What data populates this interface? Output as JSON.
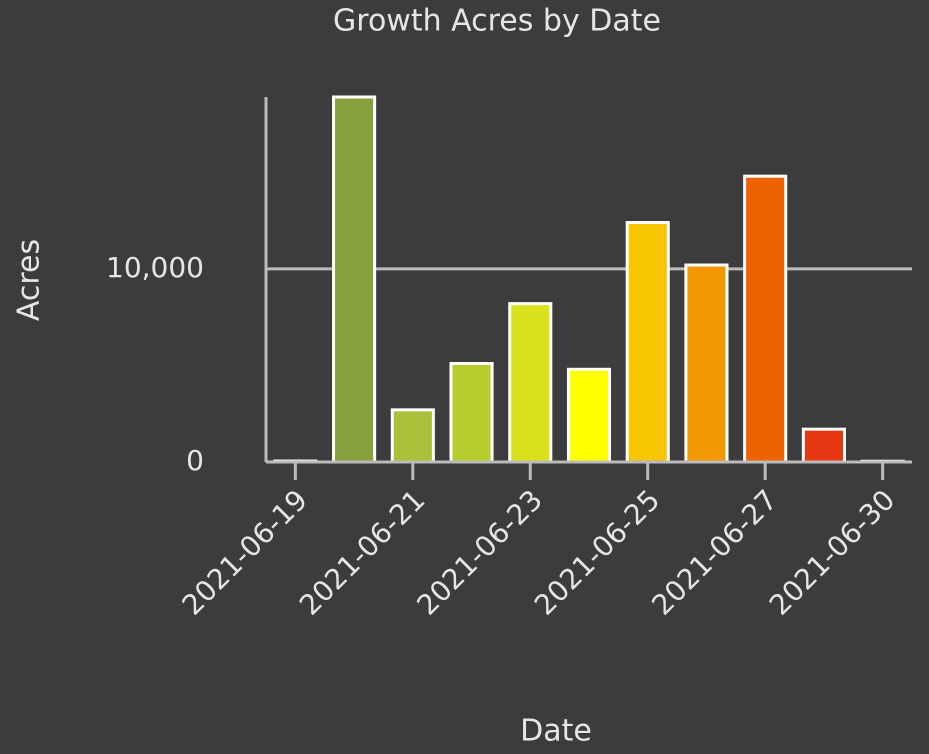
{
  "chart_data": {
    "type": "bar",
    "title": "Growth Acres by Date",
    "x_label": "Date",
    "y_label": "Acres",
    "categories": [
      "2021-06-19",
      null,
      "2021-06-21",
      null,
      "2021-06-23",
      null,
      "2021-06-25",
      null,
      "2021-06-27",
      null,
      "2021-06-30"
    ],
    "values": [
      50,
      18900,
      2700,
      5100,
      8200,
      4800,
      12400,
      10200,
      14800,
      1700,
      40
    ],
    "colors": [
      "#6e8e3c",
      "#86a03c",
      "#a8c03a",
      "#b8cc30",
      "#d8e21c",
      "#ffff00",
      "#f7c600",
      "#f39800",
      "#ee6300",
      "#e63612",
      "#d41c1c"
    ],
    "ylim": [
      0,
      18900
    ],
    "yticks": [
      0,
      {
        "value": 10000,
        "label": "10,000"
      }
    ],
    "grid": true
  }
}
